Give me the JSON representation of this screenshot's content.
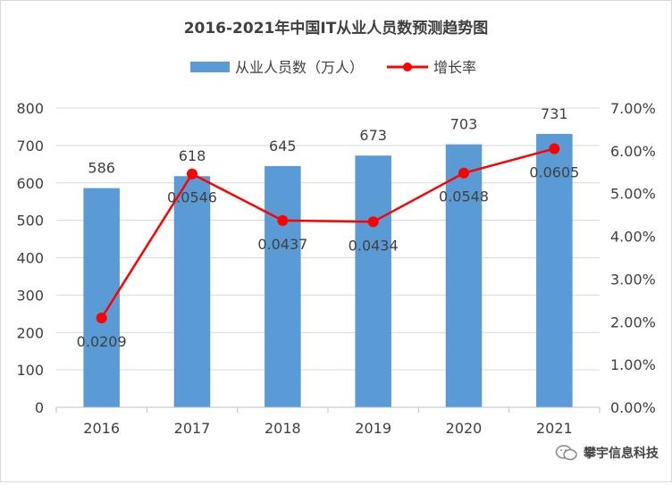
{
  "chart_data": {
    "type": "bar",
    "title": "2016-2021年中国IT从业人员数预测趋势图",
    "categories": [
      "2016",
      "2017",
      "2018",
      "2019",
      "2020",
      "2021"
    ],
    "series": [
      {
        "name": "从业人员数（万人）",
        "type": "bar",
        "axis": "left",
        "values": [
          586,
          618,
          645,
          673,
          703,
          731
        ],
        "labels": [
          "586",
          "618",
          "645",
          "673",
          "703",
          "731"
        ],
        "color": "#5b9bd5"
      },
      {
        "name": "增长率",
        "type": "line",
        "axis": "right",
        "values": [
          0.0209,
          0.0546,
          0.0437,
          0.0434,
          0.0548,
          0.0605
        ],
        "labels": [
          "0.0209",
          "0.0546",
          "0.0437",
          "0.0434",
          "0.0548",
          "0.0605"
        ],
        "color": "#ff0000"
      }
    ],
    "y_left": {
      "min": 0,
      "max": 800,
      "ticks": [
        "0",
        "100",
        "200",
        "300",
        "400",
        "500",
        "600",
        "700",
        "800"
      ]
    },
    "y_right": {
      "min": 0,
      "max": 0.07,
      "ticks": [
        "0.00%",
        "1.00%",
        "2.00%",
        "3.00%",
        "4.00%",
        "5.00%",
        "6.00%",
        "7.00%"
      ]
    },
    "grid": true,
    "legend_position": "top"
  },
  "watermark": {
    "text": "攀宇信息科技",
    "icon": "wechat-icon"
  }
}
